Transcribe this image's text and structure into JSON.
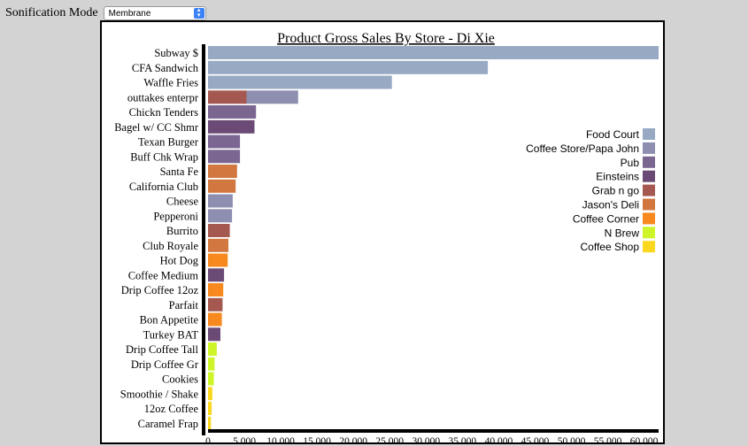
{
  "controls": {
    "label": "Sonification Mode",
    "selected": "Membrane"
  },
  "chart_data": {
    "type": "bar",
    "orientation": "horizontal",
    "stacked": true,
    "title": "Product Gross Sales By Store - Di Xie",
    "xlim": [
      0,
      62000
    ],
    "xticks": [
      "0",
      "5,000",
      "10,000",
      "15,000",
      "20,000",
      "25,000",
      "30,000",
      "35,000",
      "40,000",
      "45,000",
      "50,000",
      "55,000",
      "60,000"
    ],
    "legend_position": "right",
    "series": [
      {
        "name": "Food Court",
        "color": "#98a9c4"
      },
      {
        "name": "Coffee Store/Papa John",
        "color": "#8e8fb0"
      },
      {
        "name": "Pub",
        "color": "#7a6690"
      },
      {
        "name": "Einsteins",
        "color": "#6b4a75"
      },
      {
        "name": "Grab n go",
        "color": "#a5584f"
      },
      {
        "name": "Jason's Deli",
        "color": "#d1773f"
      },
      {
        "name": "Coffee Corner",
        "color": "#f7891e"
      },
      {
        "name": "N Brew",
        "color": "#cef52a"
      },
      {
        "name": "Coffee Shop",
        "color": "#fbd820"
      }
    ],
    "categories": [
      {
        "label": "Subway $",
        "segments": [
          {
            "store": "Food Court",
            "value": 62000
          }
        ]
      },
      {
        "label": "CFA Sandwich",
        "segments": [
          {
            "store": "Food Court",
            "value": 38500
          }
        ]
      },
      {
        "label": "Waffle Fries",
        "segments": [
          {
            "store": "Food Court",
            "value": 25300
          }
        ]
      },
      {
        "label": "outtakes enterpr",
        "segments": [
          {
            "store": "Grab n go",
            "value": 5300
          },
          {
            "store": "Coffee Store/Papa John",
            "value": 7100
          }
        ]
      },
      {
        "label": "Chickn Tenders",
        "segments": [
          {
            "store": "Pub",
            "value": 6600
          }
        ]
      },
      {
        "label": "Bagel w/ CC Shmr",
        "segments": [
          {
            "store": "Einsteins",
            "value": 6400
          }
        ]
      },
      {
        "label": "Texan Burger",
        "segments": [
          {
            "store": "Pub",
            "value": 4400
          }
        ]
      },
      {
        "label": "Buff Chk Wrap",
        "segments": [
          {
            "store": "Pub",
            "value": 4400
          }
        ]
      },
      {
        "label": "Santa Fe",
        "segments": [
          {
            "store": "Jason's Deli",
            "value": 4000
          }
        ]
      },
      {
        "label": "California Club",
        "segments": [
          {
            "store": "Jason's Deli",
            "value": 3800
          }
        ]
      },
      {
        "label": "Cheese",
        "segments": [
          {
            "store": "Coffee Store/Papa John",
            "value": 3400
          }
        ]
      },
      {
        "label": "Pepperoni",
        "segments": [
          {
            "store": "Coffee Store/Papa John",
            "value": 3300
          }
        ]
      },
      {
        "label": "Burrito",
        "segments": [
          {
            "store": "Grab n go",
            "value": 3000
          }
        ]
      },
      {
        "label": "Club Royale",
        "segments": [
          {
            "store": "Jason's Deli",
            "value": 2800
          }
        ]
      },
      {
        "label": "Hot Dog",
        "segments": [
          {
            "store": "Coffee Corner",
            "value": 2700
          }
        ]
      },
      {
        "label": "Coffee Medium",
        "segments": [
          {
            "store": "Einsteins",
            "value": 2200
          }
        ]
      },
      {
        "label": "Drip Coffee 12oz",
        "segments": [
          {
            "store": "Coffee Corner",
            "value": 2100
          }
        ]
      },
      {
        "label": "Parfait",
        "segments": [
          {
            "store": "Grab n go",
            "value": 2000
          }
        ]
      },
      {
        "label": "Bon Appetite",
        "segments": [
          {
            "store": "Coffee Corner",
            "value": 1900
          }
        ]
      },
      {
        "label": "Turkey BAT",
        "segments": [
          {
            "store": "Einsteins",
            "value": 1700
          }
        ]
      },
      {
        "label": "Drip Coffee Tall",
        "segments": [
          {
            "store": "N Brew",
            "value": 1200
          }
        ]
      },
      {
        "label": "Drip Coffee Gr",
        "segments": [
          {
            "store": "N Brew",
            "value": 900
          }
        ]
      },
      {
        "label": "Cookies",
        "segments": [
          {
            "store": "N Brew",
            "value": 800
          }
        ]
      },
      {
        "label": "Smoothie / Shake",
        "segments": [
          {
            "store": "Coffee Shop",
            "value": 600
          }
        ]
      },
      {
        "label": "12oz Coffee",
        "segments": [
          {
            "store": "Coffee Shop",
            "value": 500
          }
        ]
      },
      {
        "label": "Caramel Frap",
        "segments": [
          {
            "store": "Coffee Shop",
            "value": 400
          }
        ]
      }
    ]
  }
}
